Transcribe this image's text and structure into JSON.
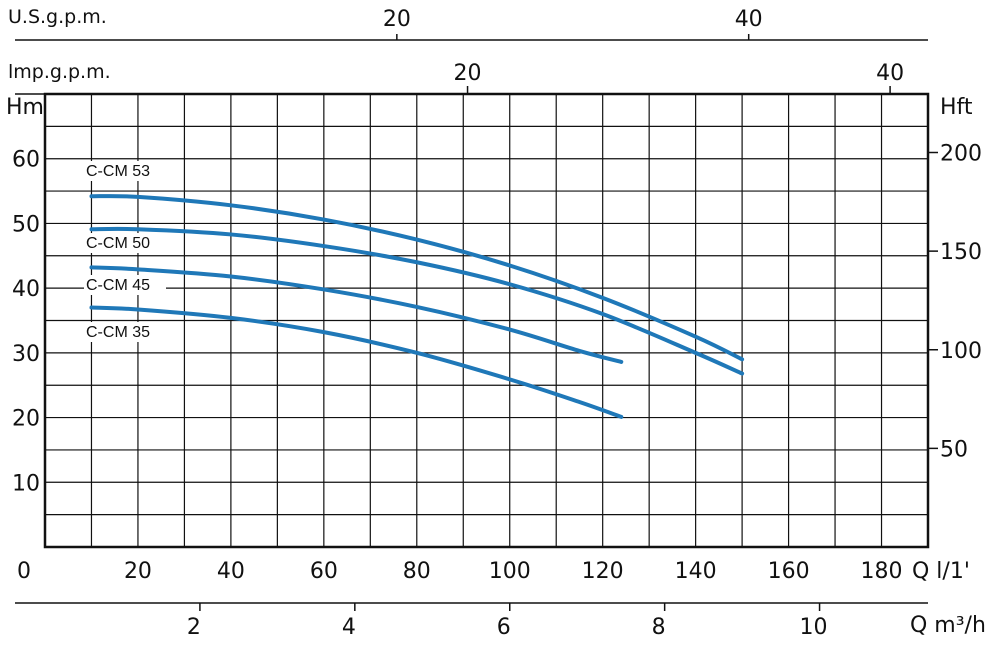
{
  "chart_data": {
    "type": "line",
    "bottom_axis": {
      "label": "Q l/1'",
      "range": [
        0,
        190
      ],
      "ticks": [
        "0",
        "20",
        "40",
        "60",
        "80",
        "100",
        "120",
        "140",
        "160",
        "180"
      ]
    },
    "q_m3h_axis": {
      "label": "Q m³/h",
      "ticks": [
        "2",
        "4",
        "6",
        "8",
        "10"
      ]
    },
    "usgpm_axis": {
      "label": "U.S.g.p.m.",
      "ticks": [
        "20",
        "40"
      ]
    },
    "impgpm_axis": {
      "label": "lmp.g.p.m.",
      "ticks": [
        "20",
        "40"
      ]
    },
    "left_axis": {
      "label": "Hm",
      "range": [
        0,
        70
      ],
      "ticks": [
        "10",
        "20",
        "30",
        "40",
        "50",
        "60"
      ]
    },
    "right_axis": {
      "label": "Hft",
      "ticks": [
        "50",
        "100",
        "150",
        "200"
      ]
    },
    "grid": true,
    "series": [
      {
        "name": "C-CM 53",
        "color": "#1f78b8",
        "x": [
          10,
          20,
          40,
          60,
          80,
          100,
          120,
          140,
          150
        ],
        "y": [
          54.2,
          54.1,
          52.8,
          50.6,
          47.5,
          43.5,
          38.5,
          32.5,
          29.0
        ]
      },
      {
        "name": "C-CM 50",
        "color": "#1f78b8",
        "x": [
          10,
          20,
          40,
          60,
          80,
          100,
          120,
          140,
          150
        ],
        "y": [
          49.1,
          49.1,
          48.3,
          46.5,
          44.0,
          40.6,
          36.0,
          30.0,
          26.8
        ]
      },
      {
        "name": "C-CM 45",
        "color": "#1f78b8",
        "x": [
          10,
          20,
          40,
          60,
          80,
          100,
          115,
          124
        ],
        "y": [
          43.2,
          42.9,
          41.8,
          39.8,
          37.1,
          33.6,
          30.3,
          28.6
        ]
      },
      {
        "name": "C-CM 35",
        "color": "#1f78b8",
        "x": [
          10,
          20,
          40,
          60,
          80,
          100,
          115,
          124
        ],
        "y": [
          37.0,
          36.7,
          35.4,
          33.2,
          30.0,
          25.9,
          22.4,
          20.1
        ]
      }
    ]
  }
}
